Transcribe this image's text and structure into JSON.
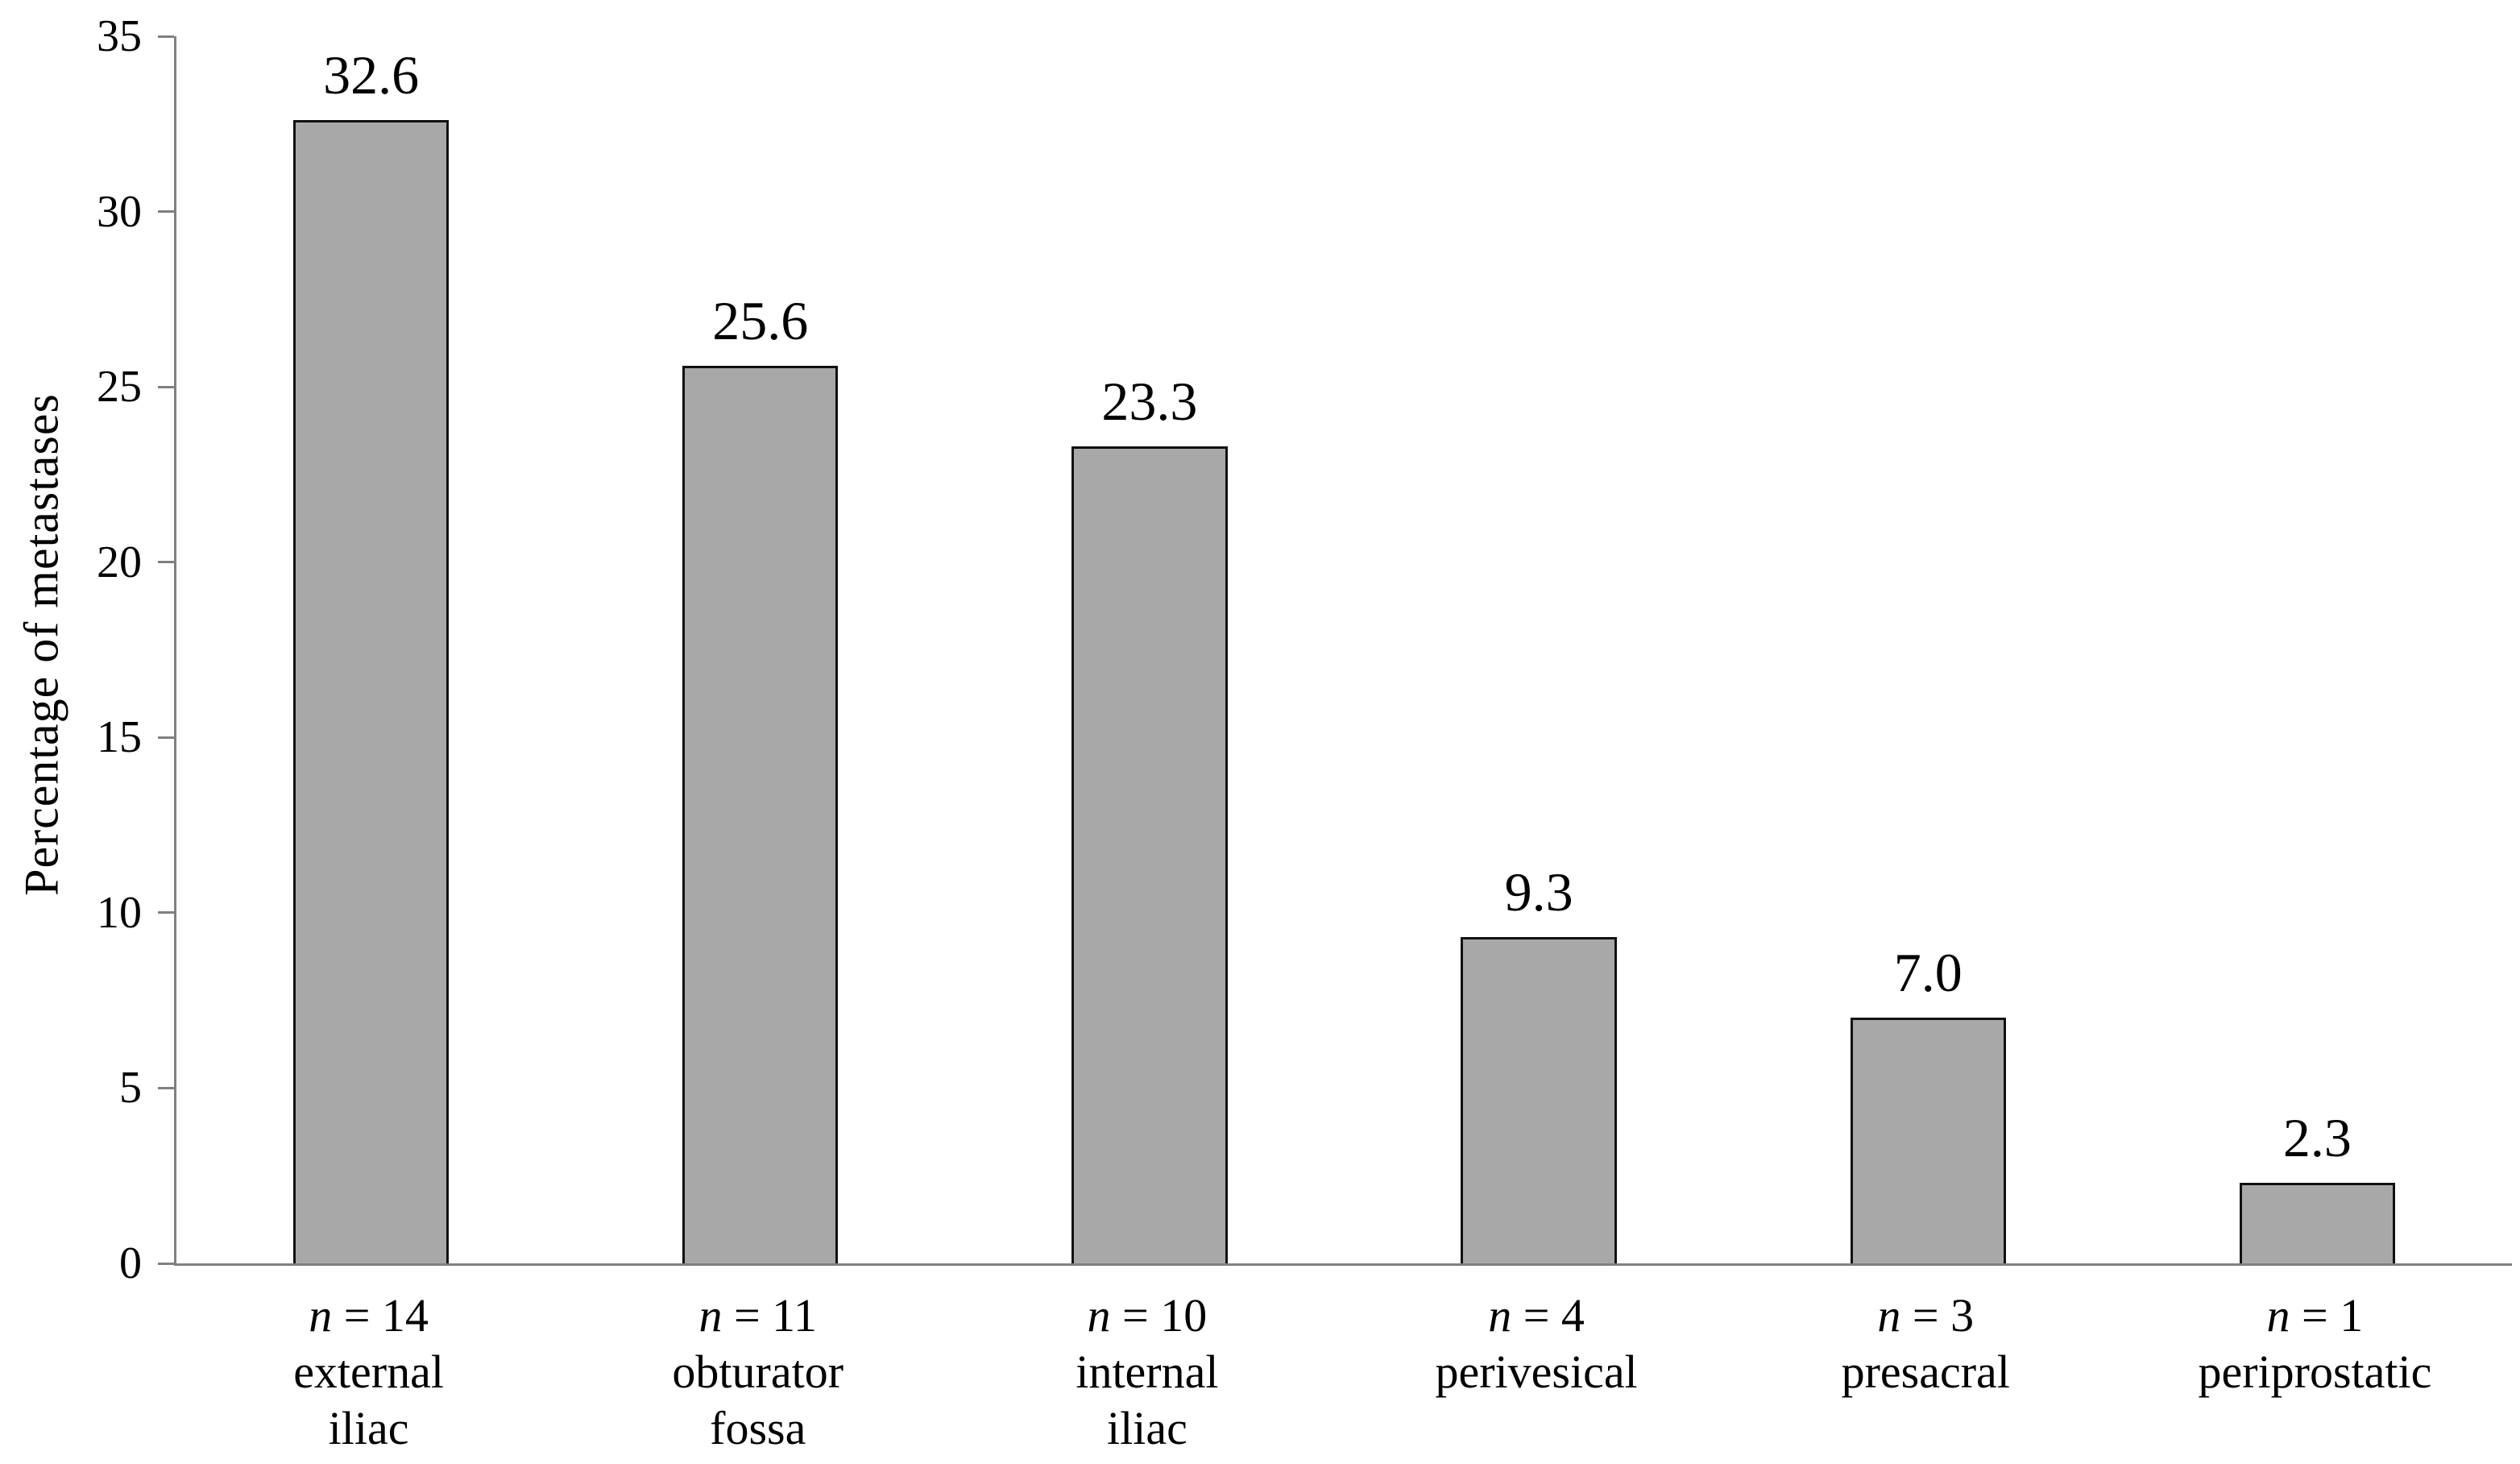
{
  "chart_data": {
    "type": "bar",
    "title": "",
    "xlabel": "",
    "ylabel": "Percentage of metastases",
    "ylim": [
      0,
      35
    ],
    "yticks": [
      0,
      5,
      10,
      15,
      20,
      25,
      30,
      35
    ],
    "grid": false,
    "legend": null,
    "bar_fill_color": "#a8a8a8",
    "bar_border_color": "#111111",
    "axis_color": "#808080",
    "text_color": "#000000",
    "categories": [
      {
        "count_italic": "n",
        "count_rest": " = 14",
        "name_lines": [
          "external",
          "iliac"
        ],
        "value": 32.6,
        "value_label": "32.6"
      },
      {
        "count_italic": "n",
        "count_rest": " = 11",
        "name_lines": [
          "obturator",
          "fossa"
        ],
        "value": 25.6,
        "value_label": "25.6"
      },
      {
        "count_italic": "n",
        "count_rest": " = 10",
        "name_lines": [
          "internal",
          "iliac"
        ],
        "value": 23.3,
        "value_label": "23.3"
      },
      {
        "count_italic": "n",
        "count_rest": " = 4",
        "name_lines": [
          "perivesical"
        ],
        "value": 9.3,
        "value_label": "9.3"
      },
      {
        "count_italic": "n",
        "count_rest": " = 3",
        "name_lines": [
          "presacral"
        ],
        "value": 7.0,
        "value_label": "7.0"
      },
      {
        "count_italic": "n",
        "count_rest": " = 1",
        "name_lines": [
          "periprostatic"
        ],
        "value": 2.3,
        "value_label": "2.3"
      }
    ]
  }
}
